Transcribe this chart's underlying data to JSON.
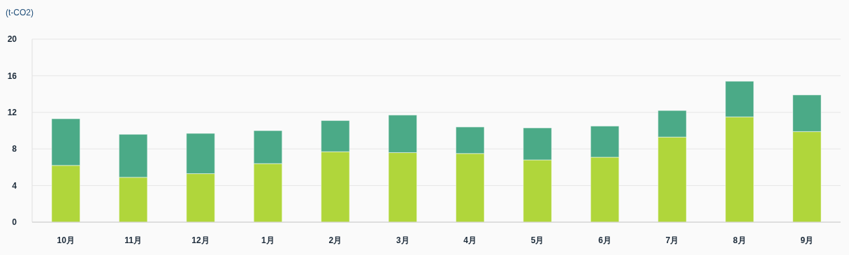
{
  "chart_data": {
    "type": "bar",
    "stacked": true,
    "ylabel": "(t-CO2)",
    "categories": [
      "10月",
      "11月",
      "12月",
      "1月",
      "2月",
      "3月",
      "4月",
      "5月",
      "6月",
      "7月",
      "8月",
      "9月"
    ],
    "series": [
      {
        "color": "#b0d63b",
        "values": [
          6.2,
          4.9,
          5.3,
          6.4,
          7.7,
          7.6,
          7.5,
          6.8,
          7.1,
          9.3,
          11.5,
          9.9
        ]
      },
      {
        "color": "#4baa87",
        "values": [
          5.1,
          4.7,
          4.4,
          3.6,
          3.4,
          4.1,
          2.9,
          3.5,
          3.4,
          2.9,
          3.9,
          4.0
        ]
      }
    ],
    "ylim": [
      0,
      20
    ],
    "yticks": [
      0,
      4,
      8,
      12,
      16,
      20
    ],
    "grid": "y"
  }
}
